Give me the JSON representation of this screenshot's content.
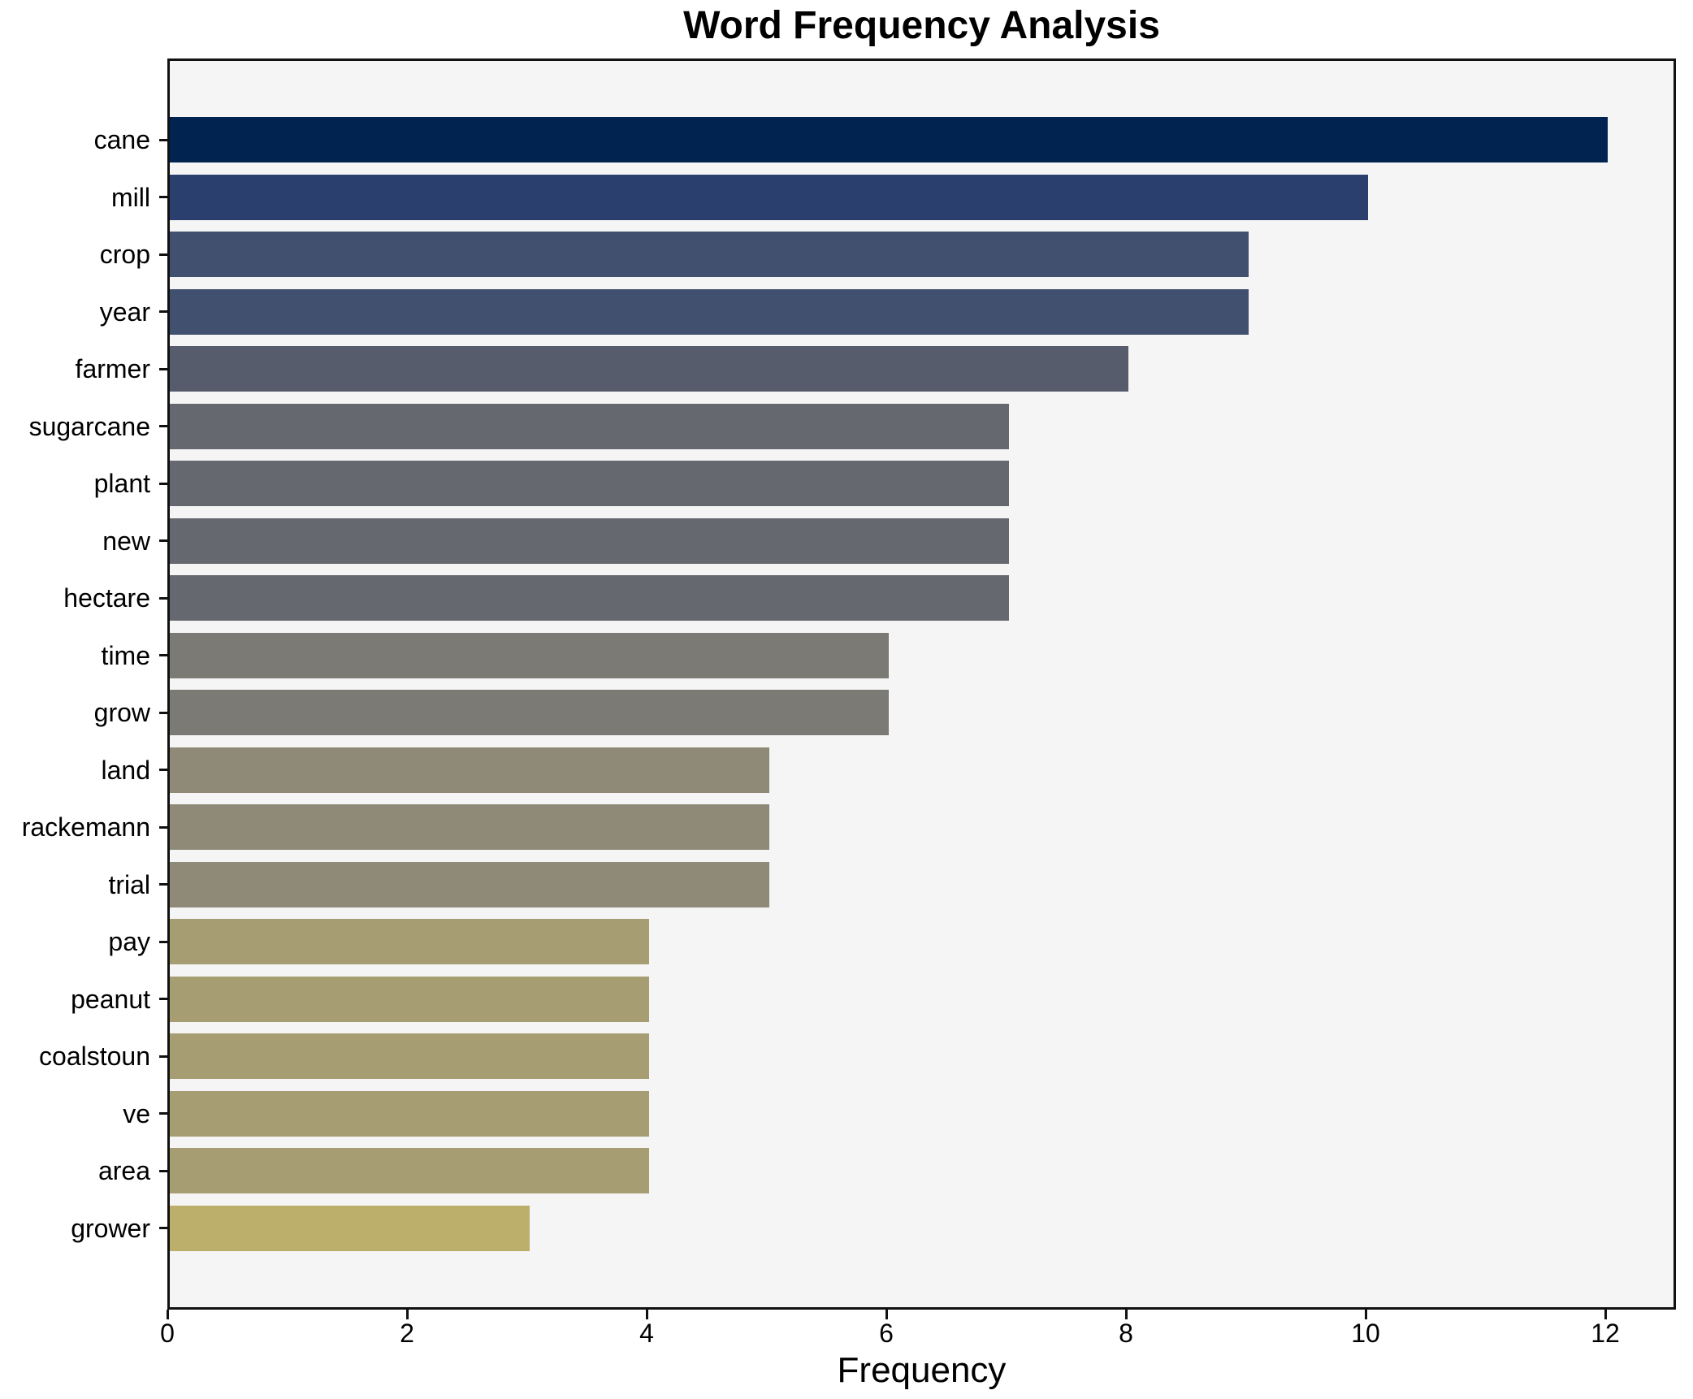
{
  "chart_data": {
    "type": "bar",
    "orientation": "horizontal",
    "title": "Word Frequency Analysis",
    "xlabel": "Frequency",
    "ylabel": "",
    "categories": [
      "cane",
      "mill",
      "crop",
      "year",
      "farmer",
      "sugarcane",
      "plant",
      "new",
      "hectare",
      "time",
      "grow",
      "land",
      "rackemann",
      "trial",
      "pay",
      "peanut",
      "coalstoun",
      "ve",
      "area",
      "grower"
    ],
    "values": [
      12,
      10,
      9,
      9,
      8,
      7,
      7,
      7,
      7,
      6,
      6,
      5,
      5,
      5,
      4,
      4,
      4,
      4,
      4,
      3
    ],
    "bar_colors": [
      "#00234f",
      "#2b3f6e",
      "#41506e",
      "#41506e",
      "#565c6c",
      "#65686e",
      "#65686e",
      "#65686e",
      "#65686e",
      "#7b7a74",
      "#7b7a74",
      "#8f8a77",
      "#8f8a77",
      "#8f8a77",
      "#a69e72",
      "#a69e72",
      "#a69e72",
      "#a69e72",
      "#a69e72",
      "#bcaf6c"
    ],
    "xticks": [
      "0",
      "2",
      "4",
      "6",
      "8",
      "10",
      "12"
    ],
    "xtick_values": [
      0,
      2,
      4,
      6,
      8,
      10,
      12
    ],
    "xlim": [
      0,
      12.6
    ],
    "grid": false,
    "legend": "none",
    "plot_bg": "#f5f5f6",
    "figure_bg": "#ffffff",
    "spine_color": "#111111",
    "colormap": "cividis"
  }
}
